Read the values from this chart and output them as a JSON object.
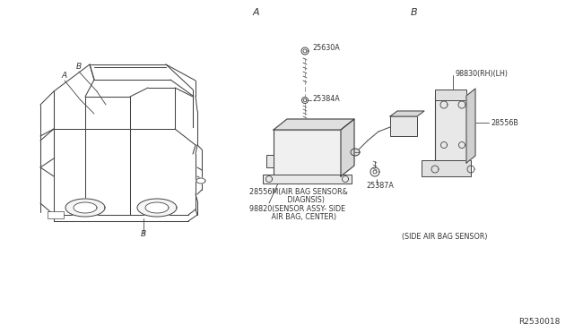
{
  "bg_color": "#ffffff",
  "line_color": "#444444",
  "text_color": "#333333",
  "diagram_id": "R2530018",
  "section_A_label": "A",
  "section_B_label": "B",
  "label_25630A": "25630A",
  "label_25384A": "25384A",
  "label_28556M": "28556M(AIR BAG SENSOR&",
  "label_28556M2": "         DIAGNSIS)",
  "label_98820": "98820(SENSOR ASSY- SIDE",
  "label_98820b": "     AIR BAG, CENTER)",
  "label_98830": "98830(RH)(LH)",
  "label_28556B": "28556B",
  "label_25387A": "25387A",
  "label_side": "(SIDE AIR BAG SENSOR)",
  "font_size_section": 8,
  "font_size_parts": 5.8,
  "font_size_id": 6.5
}
